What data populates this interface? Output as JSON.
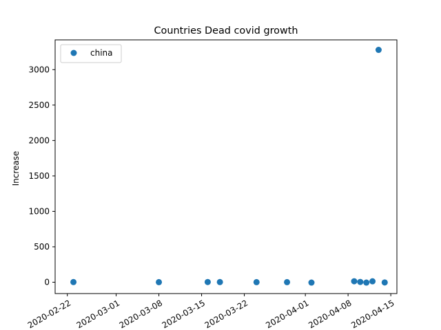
{
  "chart_data": {
    "type": "scatter",
    "title": "Countries Dead covid growth",
    "xlabel": "",
    "ylabel": "Increase",
    "x_type": "date",
    "xlim": [
      "2020-02-20",
      "2020-04-16"
    ],
    "ylim": [
      -160,
      3420
    ],
    "x_ticks": [
      "2020-02-22",
      "2020-03-01",
      "2020-03-08",
      "2020-03-15",
      "2020-03-22",
      "2020-04-01",
      "2020-04-08",
      "2020-04-15"
    ],
    "y_ticks": [
      0,
      500,
      1000,
      1500,
      2000,
      2500,
      3000
    ],
    "grid": false,
    "legend_position": "upper-left",
    "series": [
      {
        "name": "china",
        "color": "#1f77b4",
        "marker": "circle",
        "points": [
          {
            "x": "2020-02-23",
            "y": 2
          },
          {
            "x": "2020-03-08",
            "y": 1
          },
          {
            "x": "2020-03-16",
            "y": 3
          },
          {
            "x": "2020-03-18",
            "y": 2
          },
          {
            "x": "2020-03-24",
            "y": 1
          },
          {
            "x": "2020-03-29",
            "y": 1
          },
          {
            "x": "2020-04-02",
            "y": -5
          },
          {
            "x": "2020-04-09",
            "y": 14
          },
          {
            "x": "2020-04-10",
            "y": 4
          },
          {
            "x": "2020-04-11",
            "y": -5
          },
          {
            "x": "2020-04-12",
            "y": 13
          },
          {
            "x": "2020-04-13",
            "y": 3279
          },
          {
            "x": "2020-04-14",
            "y": -3
          }
        ]
      }
    ]
  }
}
